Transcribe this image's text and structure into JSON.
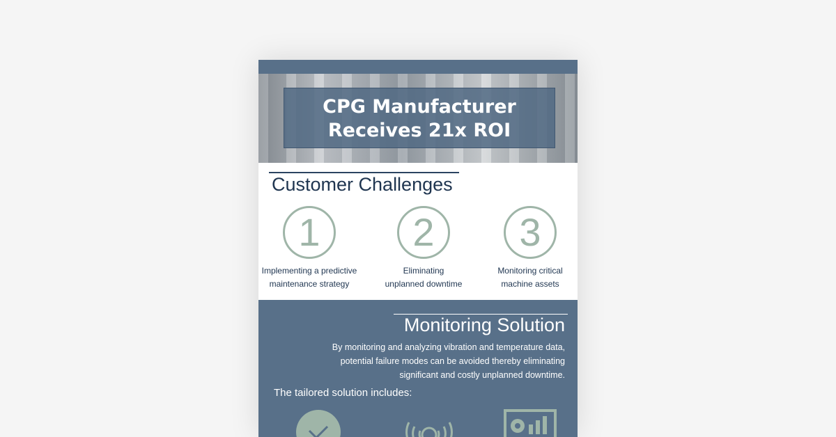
{
  "hero": {
    "title_line1": "CPG Manufacturer",
    "title_line2": "Receives 21x ROI"
  },
  "challenges": {
    "heading": "Customer Challenges",
    "items": [
      {
        "number": "1",
        "line1": "Implementing a predictive",
        "line2": "maintenance strategy"
      },
      {
        "number": "2",
        "line1": "Eliminating",
        "line2": "unplanned downtime"
      },
      {
        "number": "3",
        "line1": "Monitoring critical",
        "line2": "machine assets"
      }
    ]
  },
  "solution": {
    "heading": "Monitoring Solution",
    "description": "By monitoring and analyzing vibration and temperature data, potential failure modes can be avoided thereby eliminating significant and costly unplanned downtime.",
    "includes_label": "The tailored solution includes:",
    "icons": [
      "checkmark-icon",
      "wireless-sensor-icon",
      "dashboard-icon"
    ]
  },
  "colors": {
    "brand": "#587089",
    "accent": "#9fb5a8",
    "heading": "#1f3550"
  }
}
